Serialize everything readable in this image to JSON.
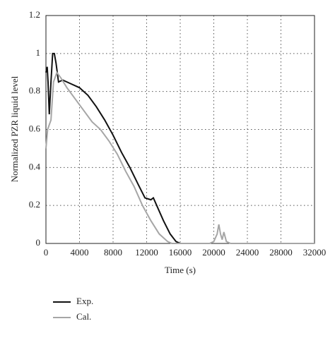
{
  "chart_data": {
    "type": "line",
    "xlabel": "Time (s)",
    "ylabel": "Normalized PZR liquid level",
    "xlim": [
      0,
      32000
    ],
    "ylim": [
      0,
      1.2
    ],
    "xticks": [
      0,
      4000,
      8000,
      12000,
      16000,
      20000,
      24000,
      28000,
      32000
    ],
    "yticks": [
      0,
      0.2,
      0.4,
      0.6,
      0.8,
      1,
      1.2
    ],
    "grid": true,
    "legend": "bottom-left",
    "series": [
      {
        "name": "Exp.",
        "color": "#111111",
        "x": [
          0,
          150,
          250,
          400,
          600,
          800,
          1000,
          1200,
          1500,
          2000,
          3000,
          4000,
          5000,
          6000,
          7000,
          8000,
          9000,
          10000,
          11000,
          11800,
          12500,
          12800,
          13200,
          14000,
          14800,
          15500,
          16000
        ],
        "values": [
          0.9,
          0.93,
          0.85,
          0.68,
          0.85,
          1.0,
          1.0,
          0.95,
          0.85,
          0.86,
          0.84,
          0.82,
          0.78,
          0.72,
          0.65,
          0.57,
          0.48,
          0.4,
          0.31,
          0.24,
          0.23,
          0.24,
          0.2,
          0.12,
          0.05,
          0.01,
          0
        ]
      },
      {
        "name": "Cal.",
        "color": "#a6a6a6",
        "x": [
          0,
          200,
          600,
          900,
          1300,
          1800,
          2500,
          3500,
          4500,
          5500,
          6500,
          7500,
          8500,
          9500,
          10500,
          11500,
          12500,
          13500,
          14500,
          15000,
          19500,
          20000,
          20400,
          20600,
          20800,
          21000,
          21200,
          21500,
          22000,
          32000
        ],
        "values": [
          0.5,
          0.6,
          0.65,
          0.85,
          0.9,
          0.87,
          0.82,
          0.76,
          0.7,
          0.64,
          0.6,
          0.54,
          0.47,
          0.38,
          0.3,
          0.2,
          0.12,
          0.05,
          0.01,
          0,
          0,
          0.01,
          0.05,
          0.1,
          0.05,
          0.02,
          0.06,
          0.01,
          0,
          0
        ]
      }
    ]
  }
}
